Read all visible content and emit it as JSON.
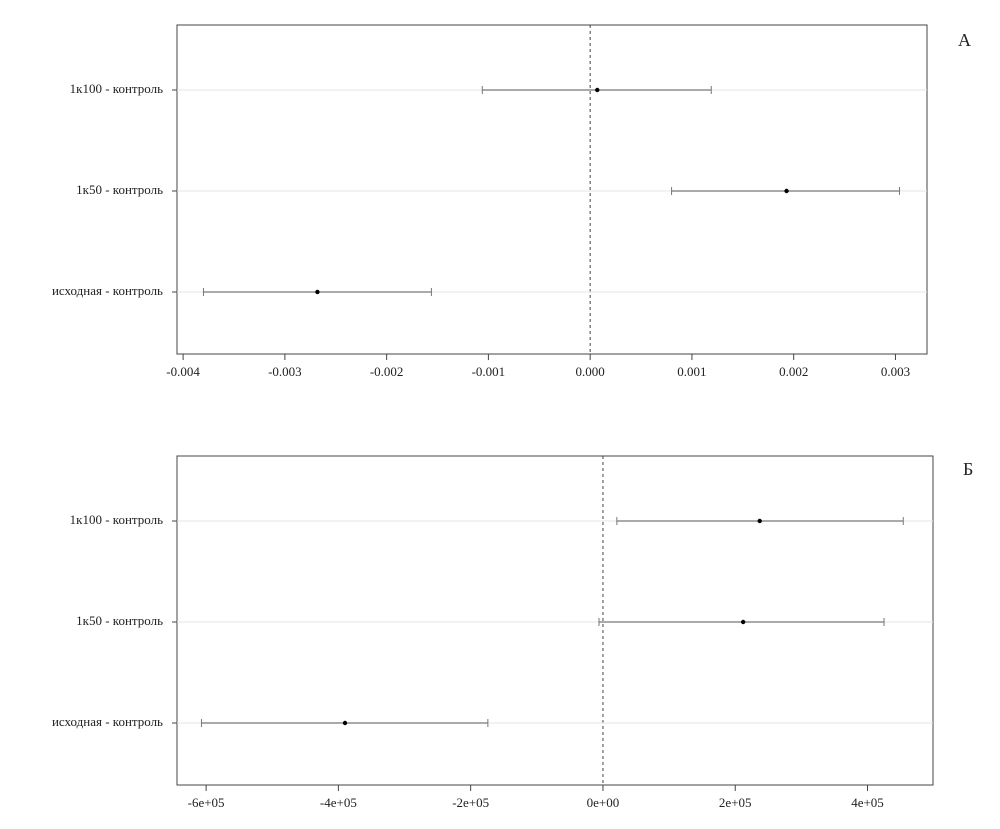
{
  "chart_data": [
    {
      "type": "interval",
      "panel_label": "А",
      "categories": [
        "1к100 - контроль",
        "1к50 - контроль",
        "исходная - контроль"
      ],
      "values": [
        7e-05,
        0.00193,
        -0.00268
      ],
      "lower": [
        -0.00106,
        0.0008,
        -0.0038
      ],
      "upper": [
        0.00119,
        0.00304,
        -0.00156
      ],
      "xlim": [
        -0.00406,
        0.00331
      ],
      "xticks": [
        -0.004,
        -0.003,
        -0.002,
        -0.001,
        {
          "value": 0,
          "label": "0.000"
        },
        0.001,
        0.002,
        0.003
      ],
      "vline": 0,
      "grid": true,
      "color": "#000000"
    },
    {
      "type": "interval",
      "panel_label": "Б",
      "categories": [
        "1к100 - контроль",
        "1к50 - контроль",
        "исходная - контроль"
      ],
      "values": [
        237000,
        212000,
        -390000
      ],
      "lower": [
        21000,
        -6000,
        -607000
      ],
      "upper": [
        454000,
        425000,
        -174000
      ],
      "xlim": [
        -644000,
        499000
      ],
      "xticks": [
        {
          "value": -600000,
          "label": "-6e+05"
        },
        {
          "value": -400000,
          "label": "-4e+05"
        },
        {
          "value": -200000,
          "label": "-2e+05"
        },
        {
          "value": 0,
          "label": "0e+00"
        },
        {
          "value": 200000,
          "label": "2e+05"
        },
        {
          "value": 400000,
          "label": "4e+05"
        }
      ],
      "vline": 0,
      "grid": true,
      "color": "#000000"
    }
  ]
}
